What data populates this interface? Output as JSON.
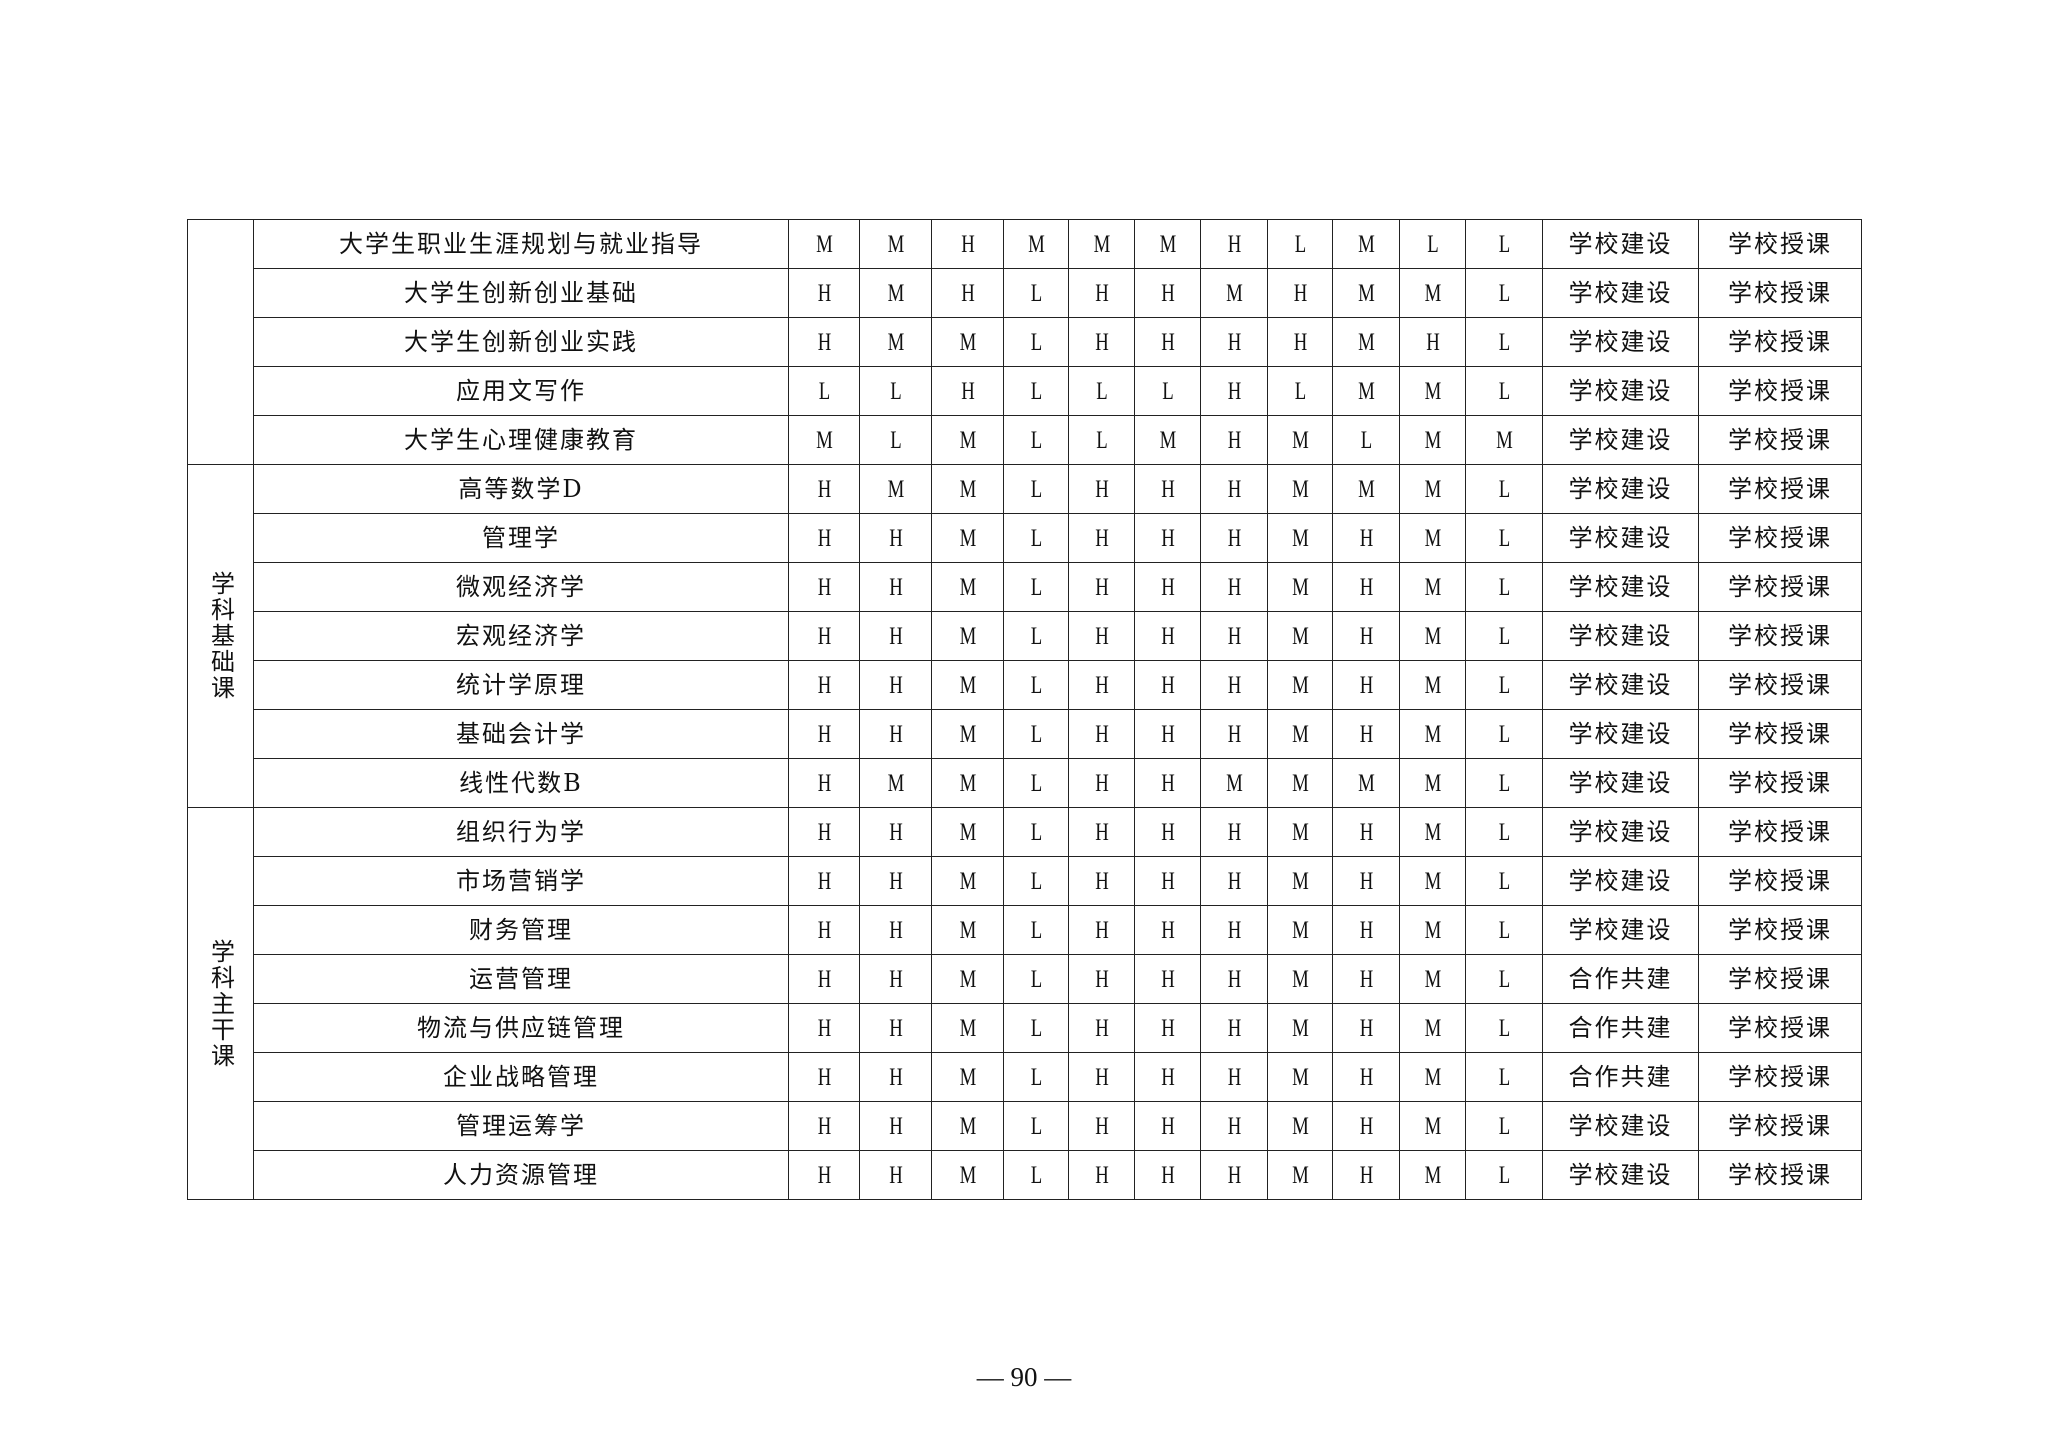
{
  "table": {
    "groups": [
      {
        "label": "",
        "rows": [
          {
            "course": "大学生职业生涯规划与就业指导",
            "levels": [
              "M",
              "M",
              "H",
              "M",
              "M",
              "M",
              "H",
              "L",
              "M",
              "L",
              "L"
            ],
            "construction": "学校建设",
            "teaching": "学校授课"
          },
          {
            "course": "大学生创新创业基础",
            "levels": [
              "H",
              "M",
              "H",
              "L",
              "H",
              "H",
              "M",
              "H",
              "M",
              "M",
              "L"
            ],
            "construction": "学校建设",
            "teaching": "学校授课"
          },
          {
            "course": "大学生创新创业实践",
            "levels": [
              "H",
              "M",
              "M",
              "L",
              "H",
              "H",
              "H",
              "H",
              "M",
              "H",
              "L"
            ],
            "construction": "学校建设",
            "teaching": "学校授课"
          },
          {
            "course": "应用文写作",
            "levels": [
              "L",
              "L",
              "H",
              "L",
              "L",
              "L",
              "H",
              "L",
              "M",
              "M",
              "L"
            ],
            "construction": "学校建设",
            "teaching": "学校授课"
          },
          {
            "course": "大学生心理健康教育",
            "levels": [
              "M",
              "L",
              "M",
              "L",
              "L",
              "M",
              "H",
              "M",
              "L",
              "M",
              "M"
            ],
            "construction": "学校建设",
            "teaching": "学校授课"
          }
        ]
      },
      {
        "label": "学科基础课",
        "rows": [
          {
            "course": "高等数学D",
            "levels": [
              "H",
              "M",
              "M",
              "L",
              "H",
              "H",
              "H",
              "M",
              "M",
              "M",
              "L"
            ],
            "construction": "学校建设",
            "teaching": "学校授课"
          },
          {
            "course": "管理学",
            "levels": [
              "H",
              "H",
              "M",
              "L",
              "H",
              "H",
              "H",
              "M",
              "H",
              "M",
              "L"
            ],
            "construction": "学校建设",
            "teaching": "学校授课"
          },
          {
            "course": "微观经济学",
            "levels": [
              "H",
              "H",
              "M",
              "L",
              "H",
              "H",
              "H",
              "M",
              "H",
              "M",
              "L"
            ],
            "construction": "学校建设",
            "teaching": "学校授课"
          },
          {
            "course": "宏观经济学",
            "levels": [
              "H",
              "H",
              "M",
              "L",
              "H",
              "H",
              "H",
              "M",
              "H",
              "M",
              "L"
            ],
            "construction": "学校建设",
            "teaching": "学校授课"
          },
          {
            "course": "统计学原理",
            "levels": [
              "H",
              "H",
              "M",
              "L",
              "H",
              "H",
              "H",
              "M",
              "H",
              "M",
              "L"
            ],
            "construction": "学校建设",
            "teaching": "学校授课"
          },
          {
            "course": "基础会计学",
            "levels": [
              "H",
              "H",
              "M",
              "L",
              "H",
              "H",
              "H",
              "M",
              "H",
              "M",
              "L"
            ],
            "construction": "学校建设",
            "teaching": "学校授课"
          },
          {
            "course": "线性代数B",
            "levels": [
              "H",
              "M",
              "M",
              "L",
              "H",
              "H",
              "M",
              "M",
              "M",
              "M",
              "L"
            ],
            "construction": "学校建设",
            "teaching": "学校授课"
          }
        ]
      },
      {
        "label": "学科主干课",
        "rows": [
          {
            "course": "组织行为学",
            "levels": [
              "H",
              "H",
              "M",
              "L",
              "H",
              "H",
              "H",
              "M",
              "H",
              "M",
              "L"
            ],
            "construction": "学校建设",
            "teaching": "学校授课"
          },
          {
            "course": "市场营销学",
            "levels": [
              "H",
              "H",
              "M",
              "L",
              "H",
              "H",
              "H",
              "M",
              "H",
              "M",
              "L"
            ],
            "construction": "学校建设",
            "teaching": "学校授课"
          },
          {
            "course": "财务管理",
            "levels": [
              "H",
              "H",
              "M",
              "L",
              "H",
              "H",
              "H",
              "M",
              "H",
              "M",
              "L"
            ],
            "construction": "学校建设",
            "teaching": "学校授课"
          },
          {
            "course": "运营管理",
            "levels": [
              "H",
              "H",
              "M",
              "L",
              "H",
              "H",
              "H",
              "M",
              "H",
              "M",
              "L"
            ],
            "construction": "合作共建",
            "teaching": "学校授课"
          },
          {
            "course": "物流与供应链管理",
            "levels": [
              "H",
              "H",
              "M",
              "L",
              "H",
              "H",
              "H",
              "M",
              "H",
              "M",
              "L"
            ],
            "construction": "合作共建",
            "teaching": "学校授课"
          },
          {
            "course": "企业战略管理",
            "levels": [
              "H",
              "H",
              "M",
              "L",
              "H",
              "H",
              "H",
              "M",
              "H",
              "M",
              "L"
            ],
            "construction": "合作共建",
            "teaching": "学校授课"
          },
          {
            "course": "管理运筹学",
            "levels": [
              "H",
              "H",
              "M",
              "L",
              "H",
              "H",
              "H",
              "M",
              "H",
              "M",
              "L"
            ],
            "construction": "学校建设",
            "teaching": "学校授课"
          },
          {
            "course": "人力资源管理",
            "levels": [
              "H",
              "H",
              "M",
              "L",
              "H",
              "H",
              "H",
              "M",
              "H",
              "M",
              "L"
            ],
            "construction": "学校建设",
            "teaching": "学校授课"
          }
        ]
      }
    ]
  },
  "footer": {
    "page_number": "— 90 —"
  }
}
